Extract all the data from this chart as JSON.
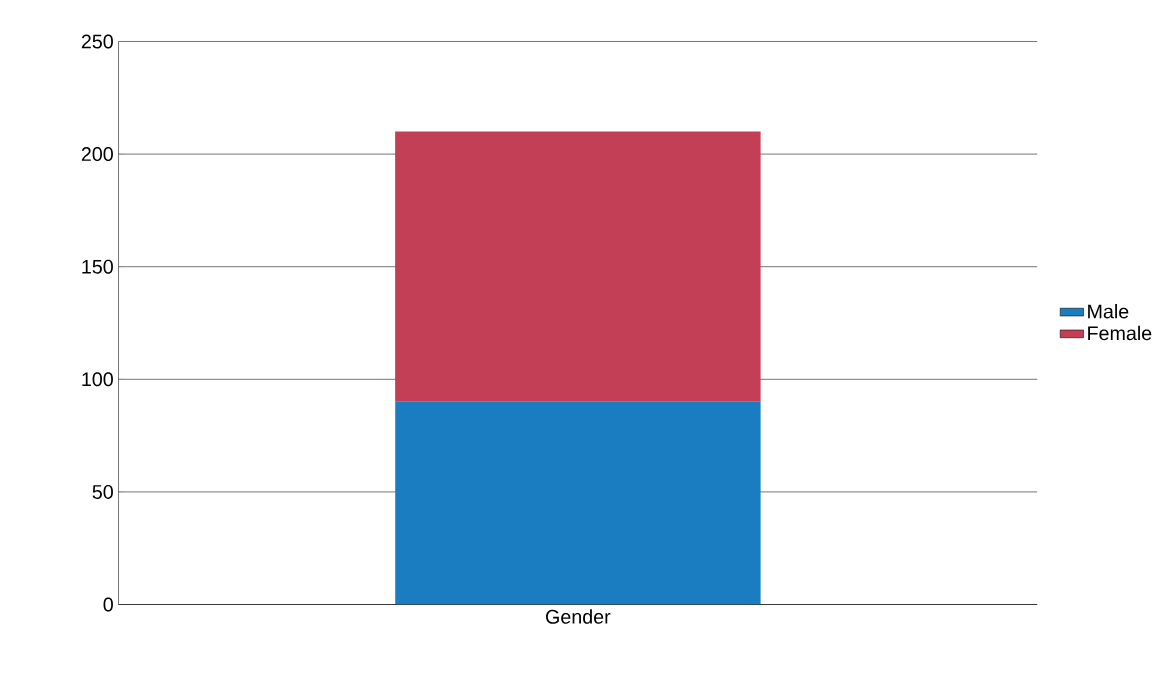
{
  "chart_data": {
    "type": "bar",
    "stacked": true,
    "categories": [
      "Gender"
    ],
    "series": [
      {
        "name": "Male",
        "color": "#1a7cc1",
        "values": [
          90
        ]
      },
      {
        "name": "Female",
        "color": "#c33f55",
        "values": [
          120
        ]
      }
    ],
    "ylim": [
      0,
      250
    ],
    "yticks": [
      0,
      50,
      100,
      150,
      200,
      250
    ],
    "grid": "y",
    "legend": "right"
  }
}
